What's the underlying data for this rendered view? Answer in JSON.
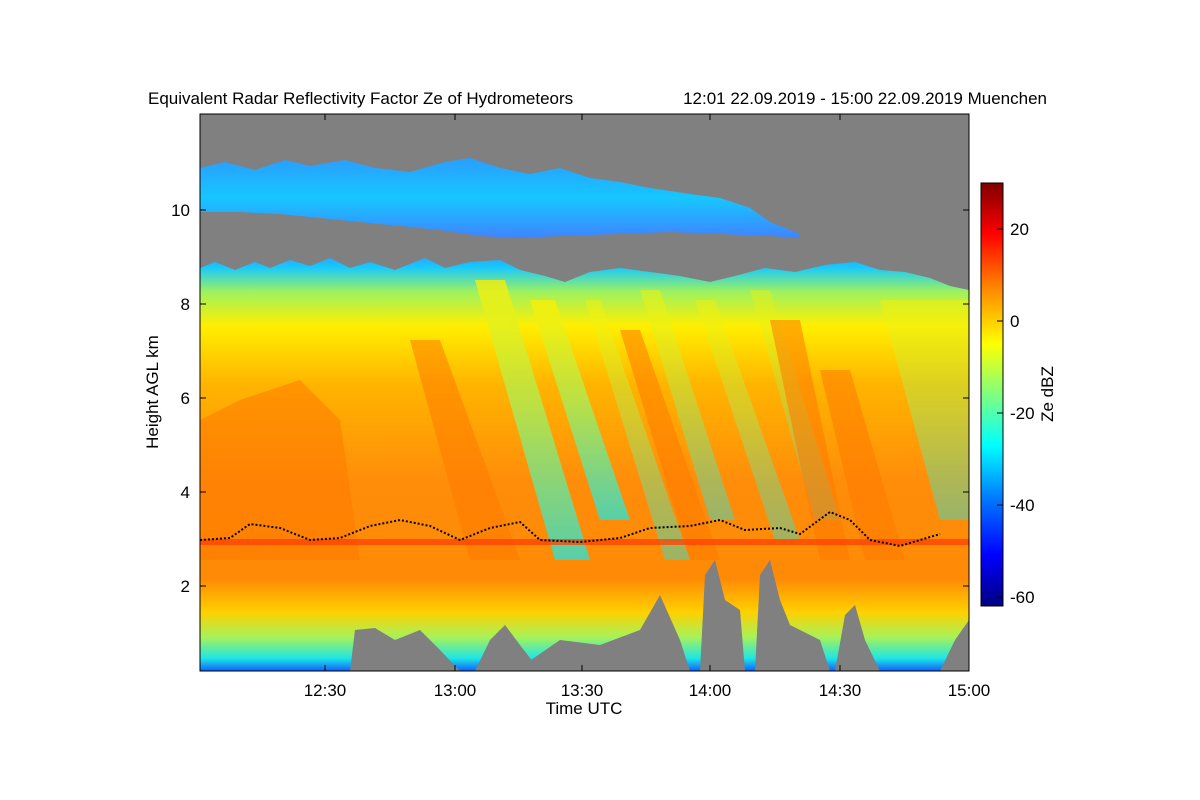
{
  "chart_data": {
    "type": "heatmap",
    "title": "Equivalent Radar Reflectivity Factor Ze of Hydrometeors",
    "subtitle": "12:01 22.09.2019 - 15:00 22.09.2019 Muenchen",
    "xlabel": "Time UTC",
    "ylabel": "Height AGL km",
    "xlim": [
      "12:01",
      "15:00"
    ],
    "ylim": [
      0.2,
      12.0
    ],
    "xticks": [
      "12:30",
      "13:00",
      "13:30",
      "14:00",
      "14:30",
      "15:00"
    ],
    "yticks": [
      2,
      4,
      6,
      8,
      10
    ],
    "colorbar": {
      "label": "Ze dBZ",
      "range": [
        -62,
        30
      ],
      "ticks": [
        20,
        0,
        -20,
        -40,
        -60
      ],
      "colors": [
        "#00007f",
        "#0000ff",
        "#007fff",
        "#00ffff",
        "#7fff7f",
        "#ffff00",
        "#ff7f00",
        "#ff0000",
        "#7f0000"
      ]
    },
    "background_color": "#808080",
    "cloud_layers": [
      {
        "name": "upper cirrus",
        "time_start": "12:01",
        "time_end": "14:24",
        "base_km": 9.6,
        "top_km": 11.1,
        "ze_dbz": -32
      },
      {
        "name": "main precipitation",
        "time_start": "12:01",
        "time_end": "15:00",
        "base_km": 0.2,
        "top_km": 8.8,
        "ze_dbz_max": 18
      }
    ],
    "melting_layer_height_km": 2.9
  }
}
